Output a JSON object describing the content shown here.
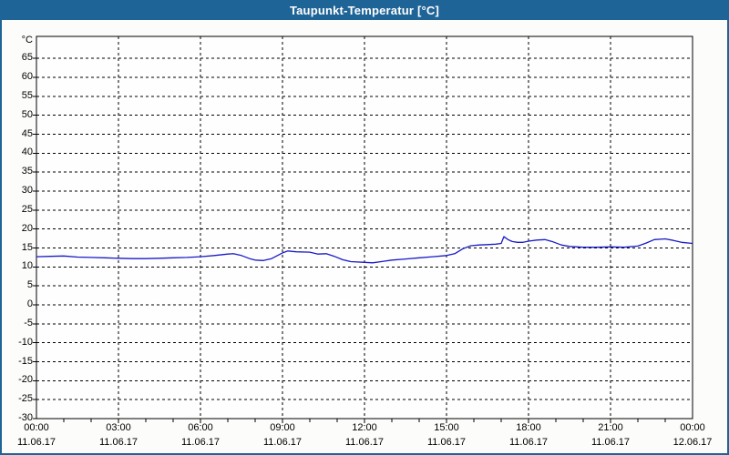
{
  "window": {
    "title": "Taupunkt-Temperatur [°C]"
  },
  "colors": {
    "titlebar_bg": "#1F6496",
    "titlebar_text": "#FFFFFF",
    "window_border": "#1F6496",
    "background": "#FCFDFB",
    "plot_bg": "#FDFEFD",
    "grid": "#000000",
    "axis": "#000000",
    "text": "#000000",
    "line": "#1A1AC8"
  },
  "chart_data": {
    "type": "line",
    "title": "Taupunkt-Temperatur [°C]",
    "ylabel": "°C",
    "ylim": [
      -30,
      70.8
    ],
    "ytick_step": 5,
    "yticks": [
      65,
      60,
      55,
      50,
      45,
      40,
      35,
      30,
      25,
      20,
      15,
      10,
      5,
      0,
      -5,
      -10,
      -15,
      -20,
      -25,
      -30
    ],
    "xlim_hours": [
      0,
      24
    ],
    "xtick_step_hours": 3,
    "minor_xtick_step_hours": 1,
    "grid": "dashed",
    "legend": "none",
    "xticks": [
      {
        "time": "00:00",
        "date": "11.06.17"
      },
      {
        "time": "03:00",
        "date": "11.06.17"
      },
      {
        "time": "06:00",
        "date": "11.06.17"
      },
      {
        "time": "09:00",
        "date": "11.06.17"
      },
      {
        "time": "12:00",
        "date": "11.06.17"
      },
      {
        "time": "15:00",
        "date": "11.06.17"
      },
      {
        "time": "18:00",
        "date": "11.06.17"
      },
      {
        "time": "21:00",
        "date": "11.06.17"
      },
      {
        "time": "00:00",
        "date": "12.06.17"
      }
    ],
    "series": [
      {
        "name": "Taupunkt-Temperatur",
        "x_hours": [
          0,
          0.5,
          1,
          1.5,
          2,
          2.5,
          3,
          3.5,
          4,
          4.5,
          5,
          5.5,
          6,
          6.5,
          7,
          7.2,
          7.5,
          7.8,
          8,
          8.3,
          8.6,
          9,
          9.2,
          9.5,
          10,
          10.3,
          10.6,
          10.9,
          11.2,
          11.5,
          12,
          12.3,
          12.7,
          13,
          13.5,
          14,
          14.5,
          15,
          15.3,
          15.6,
          15.9,
          16.2,
          16.5,
          16.8,
          17,
          17.1,
          17.25,
          17.4,
          17.6,
          17.8,
          18,
          18.3,
          18.6,
          18.9,
          19.2,
          19.5,
          20,
          20.5,
          21,
          21.5,
          22,
          22.3,
          22.6,
          23,
          23.3,
          23.6,
          24
        ],
        "values": [
          12.7,
          12.8,
          12.9,
          12.6,
          12.5,
          12.4,
          12.3,
          12.2,
          12.2,
          12.3,
          12.4,
          12.5,
          12.7,
          13.0,
          13.4,
          13.5,
          13.0,
          12.2,
          11.8,
          11.7,
          12.2,
          13.7,
          14.2,
          14.0,
          13.9,
          13.4,
          13.5,
          12.8,
          11.9,
          11.4,
          11.2,
          11.1,
          11.5,
          11.8,
          12.1,
          12.4,
          12.7,
          13.0,
          13.5,
          14.8,
          15.6,
          15.8,
          15.9,
          16.0,
          16.2,
          18.0,
          17.2,
          16.7,
          16.5,
          16.5,
          16.8,
          17.1,
          17.2,
          16.6,
          15.8,
          15.4,
          15.2,
          15.2,
          15.3,
          15.2,
          15.5,
          16.3,
          17.2,
          17.4,
          17.0,
          16.5,
          16.2
        ]
      }
    ]
  }
}
